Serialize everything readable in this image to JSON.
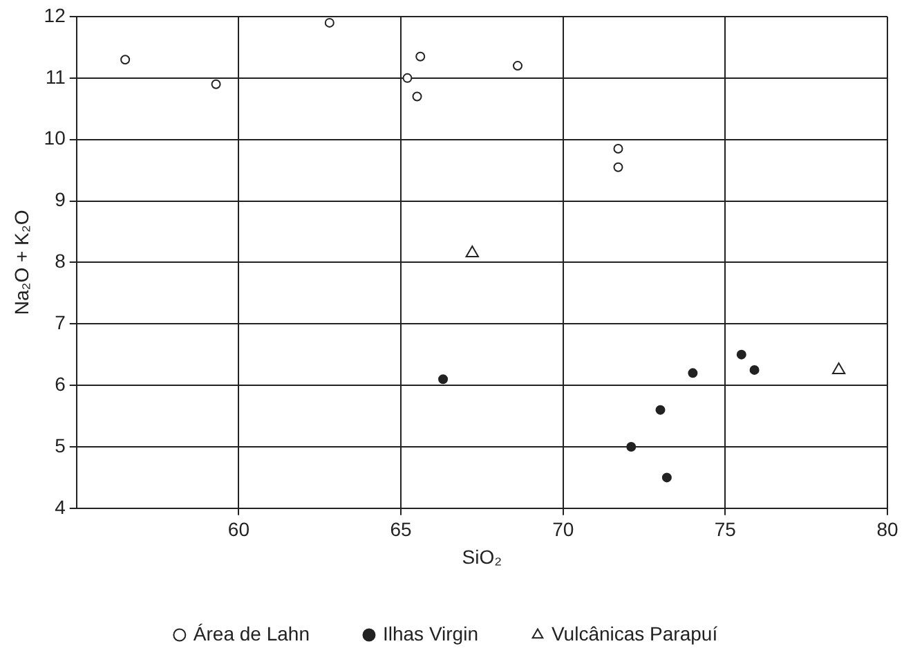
{
  "chart_data": {
    "type": "scatter",
    "xlabel": "SiO₂",
    "ylabel": "Na₂O + K₂O",
    "xlim": [
      55,
      80
    ],
    "xticks": [
      60,
      65,
      70,
      75,
      80
    ],
    "ylim": [
      4,
      12
    ],
    "yticks": [
      4,
      5,
      6,
      7,
      8,
      9,
      10,
      11,
      12
    ],
    "grid": true,
    "legend": "bottom",
    "series": [
      {
        "name": "Área de Lahn",
        "color": "#222222",
        "marker": "circle",
        "x": [
          56.5,
          59.3,
          62.8,
          65.6,
          65.2,
          65.5,
          68.6,
          71.7,
          71.7
        ],
        "values": [
          11.3,
          10.9,
          11.9,
          11.35,
          11.0,
          10.7,
          11.2,
          9.85,
          9.55
        ]
      },
      {
        "name": "Ilhas Virgin",
        "color": "#222222",
        "marker": "circle",
        "x": [
          66.3,
          75.5,
          75.9,
          74.0,
          73.0,
          72.1,
          73.2
        ],
        "values": [
          6.1,
          6.5,
          6.25,
          6.2,
          5.6,
          5.0,
          4.5
        ]
      },
      {
        "name": "Vulcânicas Parapuí",
        "color": "#222222",
        "marker": "triangle",
        "x": [
          67.2,
          78.5
        ],
        "values": [
          8.15,
          6.25
        ]
      }
    ]
  }
}
